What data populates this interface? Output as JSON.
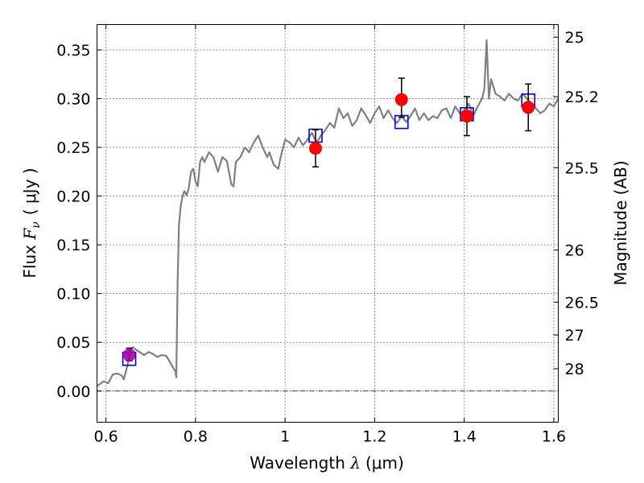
{
  "chart_data": {
    "type": "scatter",
    "xlabel_prefix": "Wavelength ",
    "xlabel_lambda": "λ",
    "xlabel_unit": "(μm)",
    "ylabel_prefix": "Flux ",
    "ylabel_symbol": "F",
    "ylabel_sub": "ν",
    "ylabel_unit": "( μJy )",
    "y2label": "Magnitude (AB)",
    "xlim": [
      0.58,
      1.61
    ],
    "ylim": [
      -0.032,
      0.376
    ],
    "grid": true,
    "x_ticks": [
      0.6,
      0.8,
      1.0,
      1.2,
      1.4,
      1.6
    ],
    "x_tick_labels": [
      "0.6",
      "0.8",
      "1",
      "1.2",
      "1.4",
      "1.6"
    ],
    "y_ticks": [
      0.0,
      0.05,
      0.1,
      0.15,
      0.2,
      0.25,
      0.3,
      0.35
    ],
    "y_tick_labels": [
      "0.00",
      "0.05",
      "0.10",
      "0.15",
      "0.20",
      "0.25",
      "0.30",
      "0.35"
    ],
    "mag_ticks": [
      25,
      25.2,
      25.5,
      26,
      26.5,
      27,
      28
    ],
    "mag_tick_labels": [
      "25",
      "25.2",
      "25.5",
      "26",
      "26.5",
      "27",
      "28"
    ],
    "series": [
      {
        "kind": "spectrum",
        "color": "#808080",
        "x": [
          0.58,
          0.595,
          0.605,
          0.615,
          0.625,
          0.635,
          0.64,
          0.65,
          0.655,
          0.66,
          0.665,
          0.675,
          0.685,
          0.695,
          0.705,
          0.715,
          0.725,
          0.735,
          0.745,
          0.755,
          0.757,
          0.76,
          0.763,
          0.767,
          0.771,
          0.775,
          0.78,
          0.785,
          0.79,
          0.795,
          0.8,
          0.805,
          0.81,
          0.815,
          0.82,
          0.83,
          0.84,
          0.85,
          0.86,
          0.87,
          0.88,
          0.885,
          0.89,
          0.9,
          0.91,
          0.92,
          0.93,
          0.94,
          0.95,
          0.96,
          0.965,
          0.97,
          0.975,
          0.98,
          0.985,
          0.99,
          1.0,
          1.01,
          1.02,
          1.03,
          1.04,
          1.05,
          1.06,
          1.07,
          1.08,
          1.09,
          1.1,
          1.11,
          1.12,
          1.13,
          1.14,
          1.15,
          1.16,
          1.17,
          1.18,
          1.19,
          1.2,
          1.21,
          1.22,
          1.23,
          1.24,
          1.25,
          1.26,
          1.27,
          1.28,
          1.29,
          1.3,
          1.31,
          1.32,
          1.33,
          1.34,
          1.35,
          1.36,
          1.37,
          1.38,
          1.39,
          1.4,
          1.41,
          1.42,
          1.43,
          1.44,
          1.445,
          1.45,
          1.455,
          1.46,
          1.47,
          1.48,
          1.49,
          1.5,
          1.51,
          1.52,
          1.53,
          1.54,
          1.55,
          1.56,
          1.57,
          1.58,
          1.59,
          1.6,
          1.61
        ],
        "y": [
          0.005,
          0.01,
          0.008,
          0.017,
          0.018,
          0.016,
          0.012,
          0.03,
          0.042,
          0.045,
          0.043,
          0.04,
          0.037,
          0.04,
          0.038,
          0.035,
          0.037,
          0.036,
          0.028,
          0.02,
          0.014,
          0.11,
          0.17,
          0.19,
          0.2,
          0.205,
          0.201,
          0.208,
          0.225,
          0.228,
          0.215,
          0.21,
          0.235,
          0.24,
          0.235,
          0.245,
          0.24,
          0.225,
          0.24,
          0.236,
          0.212,
          0.21,
          0.235,
          0.24,
          0.25,
          0.245,
          0.255,
          0.262,
          0.25,
          0.24,
          0.245,
          0.238,
          0.232,
          0.23,
          0.228,
          0.24,
          0.258,
          0.255,
          0.25,
          0.26,
          0.252,
          0.258,
          0.265,
          0.255,
          0.262,
          0.268,
          0.275,
          0.27,
          0.29,
          0.28,
          0.285,
          0.272,
          0.278,
          0.29,
          0.283,
          0.275,
          0.285,
          0.292,
          0.28,
          0.288,
          0.28,
          0.275,
          0.282,
          0.276,
          0.282,
          0.29,
          0.278,
          0.285,
          0.278,
          0.282,
          0.28,
          0.288,
          0.29,
          0.28,
          0.292,
          0.285,
          0.288,
          0.295,
          0.282,
          0.292,
          0.3,
          0.31,
          0.36,
          0.3,
          0.32,
          0.305,
          0.302,
          0.298,
          0.305,
          0.3,
          0.298,
          0.305,
          0.3,
          0.295,
          0.29,
          0.285,
          0.288,
          0.295,
          0.292,
          0.3
        ]
      },
      {
        "kind": "model_squares",
        "color": "#0000ff",
        "x": [
          0.652,
          1.068,
          1.26,
          1.406,
          1.543
        ],
        "y": [
          0.033,
          0.262,
          0.276,
          0.284,
          0.298
        ]
      },
      {
        "kind": "observed_points",
        "color": "#ff0000",
        "x": [
          0.652,
          1.068,
          1.26,
          1.406,
          1.543
        ],
        "y": [
          0.037,
          0.249,
          0.299,
          0.282,
          0.291
        ],
        "yerr_low": [
          0.006,
          0.019,
          0.018,
          0.02,
          0.024
        ],
        "yerr_high": [
          0.007,
          0.019,
          0.022,
          0.02,
          0.024
        ]
      }
    ],
    "special_point_color": "#aa00aa"
  }
}
